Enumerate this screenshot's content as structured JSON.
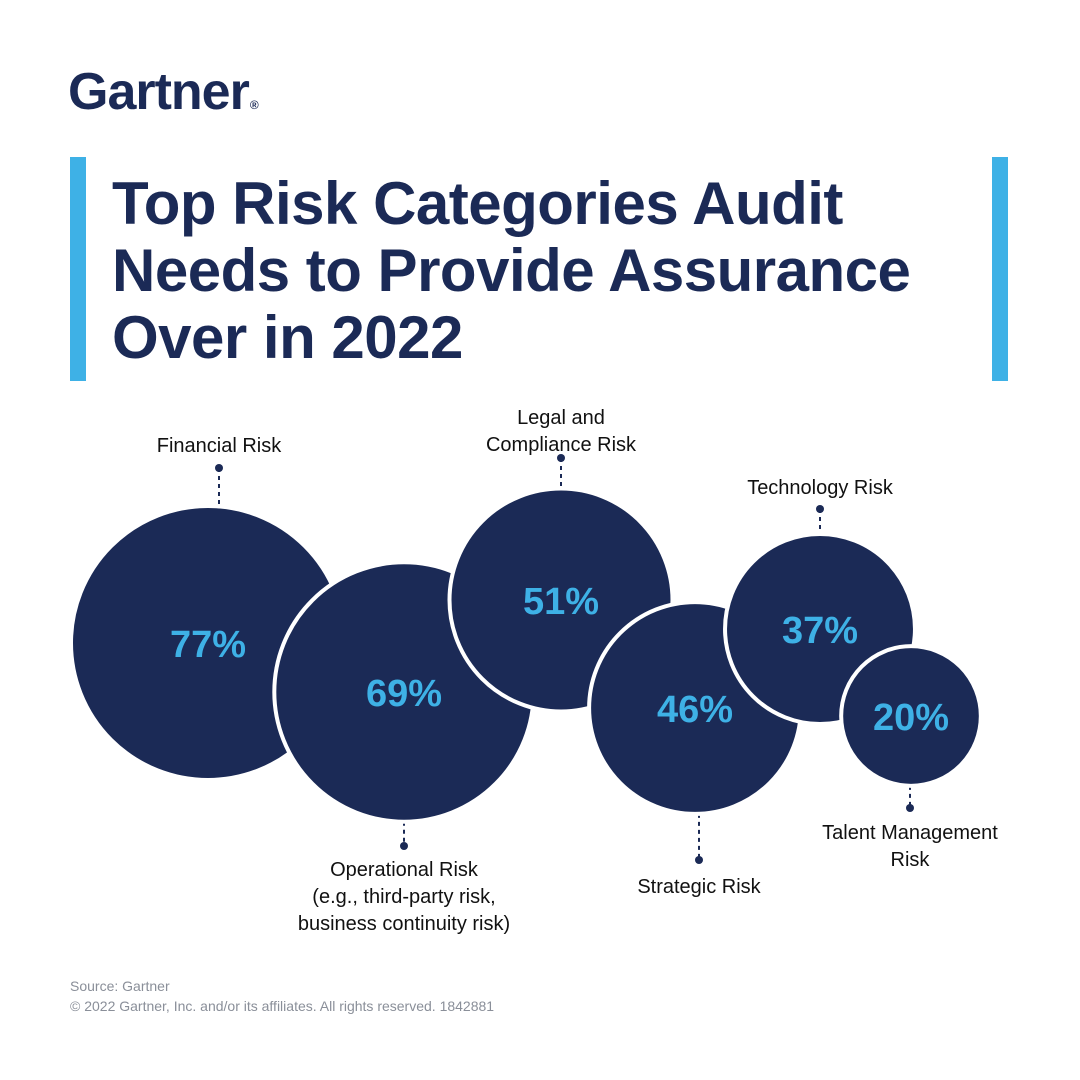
{
  "brand": {
    "name": "Gartner",
    "mark": "®"
  },
  "title_lines": [
    "Top Risk Categories Audit",
    "Needs to Provide Assurance",
    "Over in 2022"
  ],
  "colors": {
    "navy": "#1b2a56",
    "accent": "#3eb1e6",
    "text": "#111111",
    "footer": "#8a8f99"
  },
  "chart_data": {
    "type": "bubble",
    "title": "Top Risk Categories Audit Needs to Provide Assurance Over in 2022",
    "unit": "%",
    "series": [
      {
        "name": "Financial Risk",
        "label_lines": [
          "Financial Risk"
        ],
        "value": 77,
        "display": "77%",
        "label_position": "top"
      },
      {
        "name": "Operational Risk (e.g., third-party risk, business continuity risk)",
        "label_lines": [
          "Operational Risk",
          "(e.g., third-party risk,",
          "business continuity risk)"
        ],
        "value": 69,
        "display": "69%",
        "label_position": "bottom"
      },
      {
        "name": "Legal and Compliance Risk",
        "label_lines": [
          "Legal and",
          "Compliance Risk"
        ],
        "value": 51,
        "display": "51%",
        "label_position": "top"
      },
      {
        "name": "Strategic Risk",
        "label_lines": [
          "Strategic Risk"
        ],
        "value": 46,
        "display": "46%",
        "label_position": "bottom"
      },
      {
        "name": "Technology Risk",
        "label_lines": [
          "Technology Risk"
        ],
        "value": 37,
        "display": "37%",
        "label_position": "top"
      },
      {
        "name": "Talent Management Risk",
        "label_lines": [
          "Talent Management",
          "Risk"
        ],
        "value": 20,
        "display": "20%",
        "label_position": "bottom"
      }
    ]
  },
  "footer": {
    "source": "Source: Gartner",
    "copyright": "© 2022 Gartner, Inc. and/or its affiliates. All rights reserved. 1842881"
  }
}
